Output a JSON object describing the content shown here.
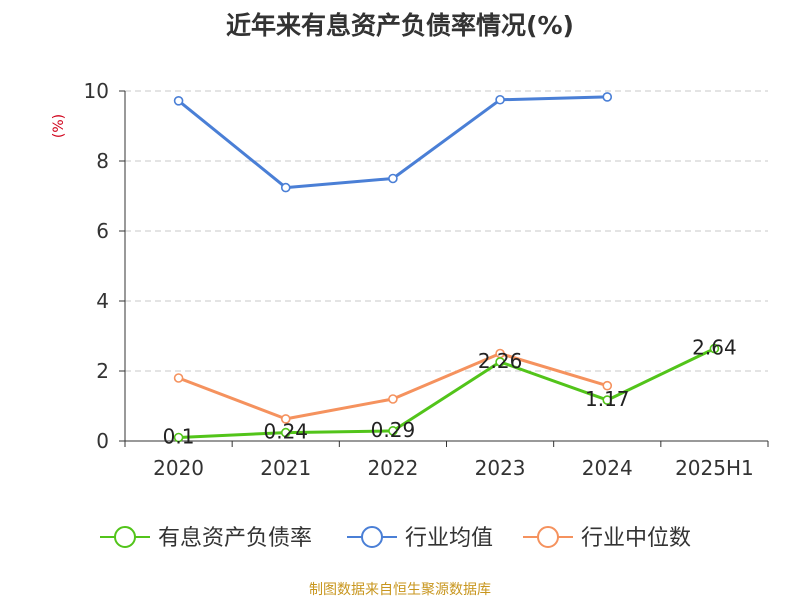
{
  "chart_data": {
    "type": "line",
    "title": "近年来有息资产负债率情况(%)",
    "ylabel": "(%)",
    "xlabel": "",
    "categories": [
      "2020",
      "2021",
      "2022",
      "2023",
      "2024",
      "2025H1"
    ],
    "ylim": [
      0,
      10
    ],
    "yticks": [
      0,
      2,
      4,
      6,
      8,
      10
    ],
    "grid": true,
    "legend_position": "bottom",
    "series": [
      {
        "name": "有息资产负债率",
        "color": "#52c41a",
        "values": [
          0.1,
          0.24,
          0.29,
          2.26,
          1.17,
          2.64
        ],
        "labels": [
          "0.1",
          "0.24",
          "0.29",
          "2.26",
          "1.17",
          "2.64"
        ]
      },
      {
        "name": "行业均值",
        "color": "#4a7fd6",
        "values": [
          9.72,
          7.24,
          7.5,
          9.75,
          9.83,
          null
        ]
      },
      {
        "name": "行业中位数",
        "color": "#f5925e",
        "values": [
          1.8,
          0.63,
          1.2,
          2.5,
          1.58,
          null
        ]
      }
    ],
    "source": "制图数据来自恒生聚源数据库"
  }
}
